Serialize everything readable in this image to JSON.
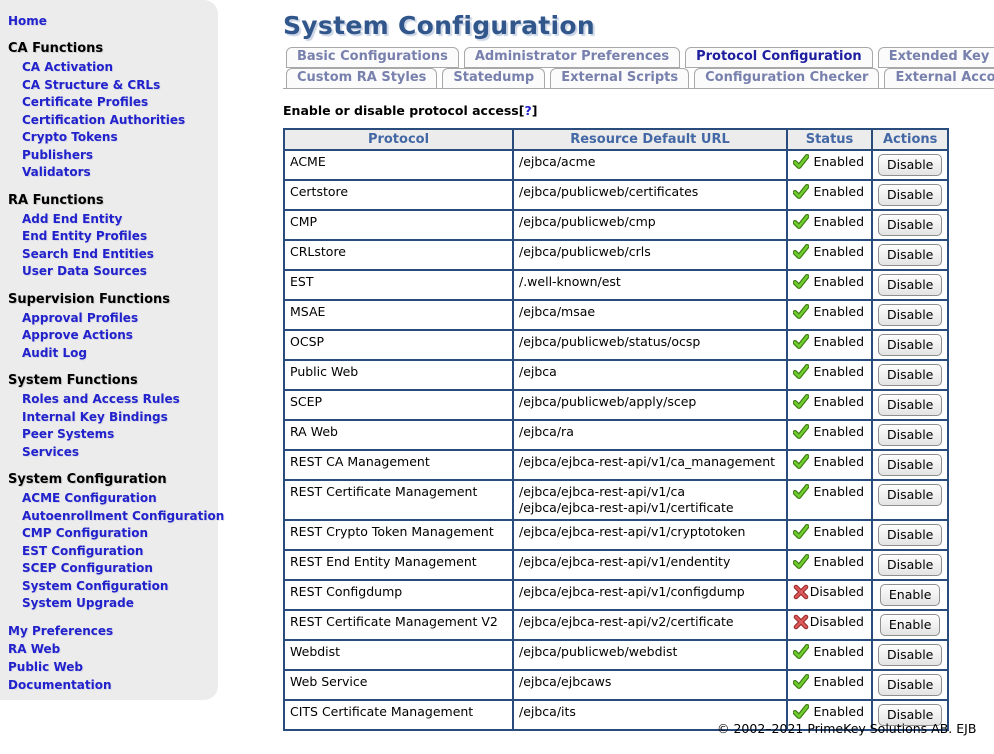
{
  "colors": {
    "link_blue": "#2222cc",
    "title_blue": "#30568c",
    "table_border": "#2a4c7d",
    "table_header_text": "#4368a5",
    "tab_inactive_text": "#7880ad",
    "tab_active_text": "#1d1da0",
    "enabled_green": "#6fce2e",
    "disabled_red": "#e05c5c",
    "sidebar_bg": "#ececec"
  },
  "sidebar": {
    "top_links": [
      "Home"
    ],
    "sections": [
      {
        "title": "CA Functions",
        "items": [
          "CA Activation",
          "CA Structure & CRLs",
          "Certificate Profiles",
          "Certification Authorities",
          "Crypto Tokens",
          "Publishers",
          "Validators"
        ]
      },
      {
        "title": "RA Functions",
        "items": [
          "Add End Entity",
          "End Entity Profiles",
          "Search End Entities",
          "User Data Sources"
        ]
      },
      {
        "title": "Supervision Functions",
        "items": [
          "Approval Profiles",
          "Approve Actions",
          "Audit Log"
        ]
      },
      {
        "title": "System Functions",
        "items": [
          "Roles and Access Rules",
          "Internal Key Bindings",
          "Peer Systems",
          "Services"
        ]
      },
      {
        "title": "System Configuration",
        "items": [
          "ACME Configuration",
          "Autoenrollment Configuration",
          "CMP Configuration",
          "EST Configuration",
          "SCEP Configuration",
          "System Configuration",
          "System Upgrade"
        ]
      }
    ],
    "bottom_links": [
      "My Preferences",
      "RA Web",
      "Public Web",
      "Documentation"
    ]
  },
  "main": {
    "title": "System Configuration",
    "tabs_row1": [
      {
        "label": "Basic Configurations",
        "active": false
      },
      {
        "label": "Administrator Preferences",
        "active": false
      },
      {
        "label": "Protocol Configuration",
        "active": true
      },
      {
        "label": "Extended Key",
        "active": false
      }
    ],
    "tabs_row2": [
      {
        "label": "Custom RA Styles",
        "active": false
      },
      {
        "label": "Statedump",
        "active": false
      },
      {
        "label": "External Scripts",
        "active": false
      },
      {
        "label": "Configuration Checker",
        "active": false
      },
      {
        "label": "External Acco",
        "active": false
      }
    ],
    "note": {
      "text": "Enable or disable protocol access",
      "bracket_open": "[",
      "help": "?",
      "bracket_close": "]"
    },
    "table": {
      "headers": [
        "Protocol",
        "Resource Default URL",
        "Status",
        "Actions"
      ],
      "rows": [
        {
          "protocol": "ACME",
          "urls": [
            "/ejbca/acme"
          ],
          "status": "Enabled",
          "action": "Disable"
        },
        {
          "protocol": "Certstore",
          "urls": [
            "/ejbca/publicweb/certificates"
          ],
          "status": "Enabled",
          "action": "Disable"
        },
        {
          "protocol": "CMP",
          "urls": [
            "/ejbca/publicweb/cmp"
          ],
          "status": "Enabled",
          "action": "Disable"
        },
        {
          "protocol": "CRLstore",
          "urls": [
            "/ejbca/publicweb/crls"
          ],
          "status": "Enabled",
          "action": "Disable"
        },
        {
          "protocol": "EST",
          "urls": [
            "/.well-known/est"
          ],
          "status": "Enabled",
          "action": "Disable"
        },
        {
          "protocol": "MSAE",
          "urls": [
            "/ejbca/msae"
          ],
          "status": "Enabled",
          "action": "Disable"
        },
        {
          "protocol": "OCSP",
          "urls": [
            "/ejbca/publicweb/status/ocsp"
          ],
          "status": "Enabled",
          "action": "Disable"
        },
        {
          "protocol": "Public Web",
          "urls": [
            "/ejbca"
          ],
          "status": "Enabled",
          "action": "Disable"
        },
        {
          "protocol": "SCEP",
          "urls": [
            "/ejbca/publicweb/apply/scep"
          ],
          "status": "Enabled",
          "action": "Disable"
        },
        {
          "protocol": "RA Web",
          "urls": [
            "/ejbca/ra"
          ],
          "status": "Enabled",
          "action": "Disable"
        },
        {
          "protocol": "REST CA Management",
          "urls": [
            "/ejbca/ejbca-rest-api/v1/ca_management"
          ],
          "status": "Enabled",
          "action": "Disable"
        },
        {
          "protocol": "REST Certificate Management",
          "urls": [
            "/ejbca/ejbca-rest-api/v1/ca",
            "/ejbca/ejbca-rest-api/v1/certificate"
          ],
          "status": "Enabled",
          "action": "Disable"
        },
        {
          "protocol": "REST Crypto Token Management",
          "urls": [
            "/ejbca/ejbca-rest-api/v1/cryptotoken"
          ],
          "status": "Enabled",
          "action": "Disable"
        },
        {
          "protocol": "REST End Entity Management",
          "urls": [
            "/ejbca/ejbca-rest-api/v1/endentity"
          ],
          "status": "Enabled",
          "action": "Disable"
        },
        {
          "protocol": "REST Configdump",
          "urls": [
            "/ejbca/ejbca-rest-api/v1/configdump"
          ],
          "status": "Disabled",
          "action": "Enable"
        },
        {
          "protocol": "REST Certificate Management V2",
          "urls": [
            "/ejbca/ejbca-rest-api/v2/certificate"
          ],
          "status": "Disabled",
          "action": "Enable"
        },
        {
          "protocol": "Webdist",
          "urls": [
            "/ejbca/publicweb/webdist"
          ],
          "status": "Enabled",
          "action": "Disable"
        },
        {
          "protocol": "Web Service",
          "urls": [
            "/ejbca/ejbcaws"
          ],
          "status": "Enabled",
          "action": "Disable"
        },
        {
          "protocol": "CITS Certificate Management",
          "urls": [
            "/ejbca/its"
          ],
          "status": "Enabled",
          "action": "Disable"
        }
      ]
    }
  },
  "footer": {
    "copyright": "© 2002–2021 PrimeKey Solutions AB. EJB"
  }
}
